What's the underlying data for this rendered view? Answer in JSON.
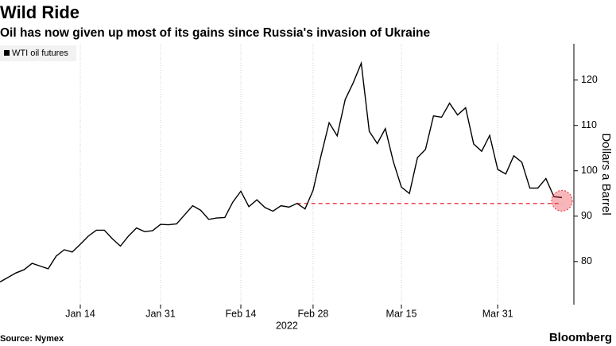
{
  "chart_data": {
    "type": "line",
    "title": "Wild Ride",
    "subtitle": "Oil has now given up most of its gains since Russia's invasion of Ukraine",
    "y_label": "Dollars a Barrel",
    "x_year_label": "2022",
    "source": "Source: Nymex",
    "brand": "Bloomberg",
    "categories": [
      null,
      null,
      null,
      null,
      null,
      null,
      null,
      null,
      null,
      null,
      "Jan 14",
      null,
      null,
      null,
      null,
      null,
      null,
      null,
      null,
      null,
      "Jan 31",
      null,
      null,
      null,
      null,
      null,
      null,
      null,
      null,
      null,
      "Feb 14",
      null,
      null,
      null,
      null,
      null,
      null,
      null,
      null,
      "Feb 28",
      null,
      null,
      null,
      null,
      null,
      null,
      null,
      null,
      null,
      null,
      "Mar 15",
      null,
      null,
      null,
      null,
      null,
      null,
      null,
      null,
      null,
      null,
      null,
      "Mar 31",
      null,
      null,
      null,
      null,
      null,
      null,
      null,
      null
    ],
    "series": [
      {
        "name": "WTI oil futures",
        "color": "#000000",
        "values": [
          75.5,
          76.5,
          77.5,
          78.2,
          79.6,
          79.0,
          78.4,
          81.2,
          82.6,
          82.1,
          83.8,
          85.6,
          86.9,
          86.9,
          85.0,
          83.4,
          85.6,
          87.4,
          86.6,
          86.8,
          88.2,
          88.1,
          88.3,
          90.3,
          92.3,
          91.3,
          89.3,
          89.6,
          89.7,
          93.1,
          95.5,
          92.1,
          93.6,
          91.9,
          91.1,
          92.3,
          92.0,
          92.8,
          91.6,
          95.7,
          103.4,
          110.6,
          107.7,
          115.7,
          119.4,
          123.7,
          108.7,
          106.0,
          109.3,
          102.0,
          96.4,
          95.0,
          102.9,
          104.7,
          112.1,
          111.8,
          114.9,
          112.3,
          113.9,
          105.9,
          104.3,
          107.8,
          100.3,
          99.3,
          103.3,
          101.9,
          96.2,
          96.2,
          98.3,
          94.3,
          94.1
        ]
      }
    ],
    "reference_line": {
      "from": 37,
      "value": 92.8,
      "color": "#e8303a"
    },
    "ylim": [
      70.5,
      128
    ],
    "yticks": [
      80,
      90,
      100,
      110,
      120
    ],
    "grid": true,
    "legend": "top-left"
  }
}
